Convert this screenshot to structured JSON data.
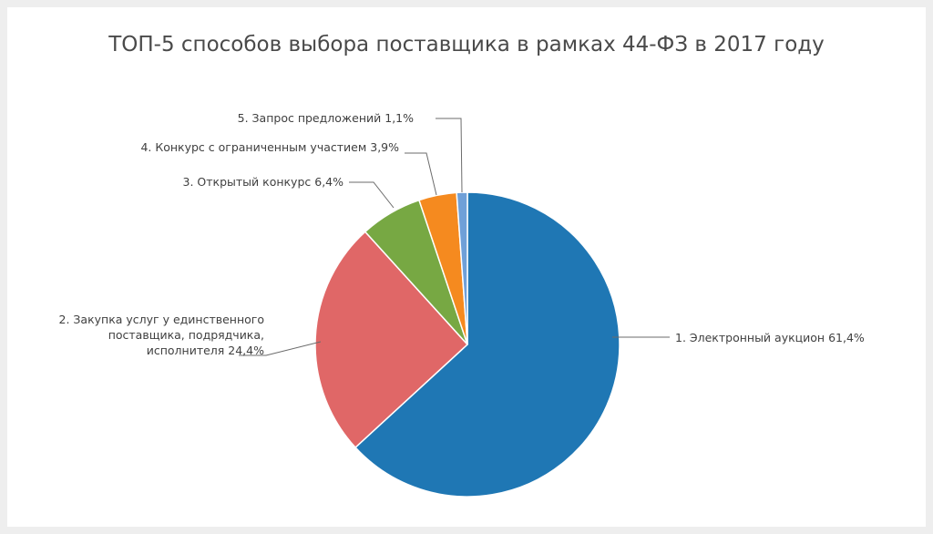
{
  "chart_data": {
    "type": "pie",
    "title": "ТОП-5 способов выбора поставщика в рамках 44-ФЗ в 2017 году",
    "slices": [
      {
        "label_lines": [
          "1. Электронный аукцион 61,4%"
        ],
        "value": 61.4,
        "color": "#1f77b4"
      },
      {
        "label_lines": [
          "2. Закупка услуг у единственного",
          "поставщика, подрядчика,",
          "исполнителя 24,4%"
        ],
        "value": 24.4,
        "color": "#e06767"
      },
      {
        "label_lines": [
          "3. Открытый конкурс 6,4%"
        ],
        "value": 6.4,
        "color": "#77a843"
      },
      {
        "label_lines": [
          "4. Конкурс с ограниченным участием 3,9%"
        ],
        "value": 3.9,
        "color": "#f58a1f"
      },
      {
        "label_lines": [
          "5. Запрос предложений 1,1%"
        ],
        "value": 1.1,
        "color": "#6fa0d8"
      }
    ]
  }
}
